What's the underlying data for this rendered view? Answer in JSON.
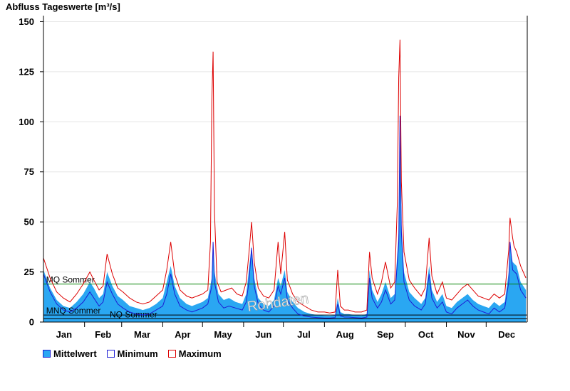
{
  "colors": {
    "mean_fill": "#2aa7f2",
    "minimum": "#1c1cd4",
    "maximum": "#dd0000",
    "mq_line": "#008000",
    "threshold_line": "#000000"
  },
  "chart_data": {
    "type": "area",
    "title": "Abfluss Tageswerte [m³/s]",
    "xlabel": "",
    "ylabel": "",
    "ylim": [
      0,
      153
    ],
    "y_ticks": [
      "0",
      "25",
      "50",
      "75",
      "100",
      "125",
      "150"
    ],
    "x_days": 365,
    "months": [
      "Jan",
      "Feb",
      "Mar",
      "Apr",
      "May",
      "Jun",
      "Jul",
      "Aug",
      "Sep",
      "Oct",
      "Nov",
      "Dec"
    ],
    "grid": true,
    "legend_position": "bottom-left",
    "watermark": "Rohdaten",
    "reference_lines": [
      {
        "label": "MQ Sommer",
        "value": 19
      },
      {
        "label": "MNQ Sommer",
        "value": 3.5
      },
      {
        "label": "NQ Sommer",
        "value": 1.6
      }
    ],
    "series": [
      {
        "name": "Mittelwert",
        "points": [
          [
            0,
            26
          ],
          [
            5,
            17
          ],
          [
            10,
            11
          ],
          [
            15,
            8
          ],
          [
            20,
            7
          ],
          [
            25,
            10
          ],
          [
            30,
            14
          ],
          [
            35,
            20
          ],
          [
            38,
            17
          ],
          [
            42,
            12
          ],
          [
            45,
            14
          ],
          [
            48,
            25
          ],
          [
            52,
            18
          ],
          [
            56,
            13
          ],
          [
            60,
            11
          ],
          [
            65,
            8
          ],
          [
            70,
            7
          ],
          [
            75,
            6
          ],
          [
            80,
            7
          ],
          [
            85,
            9
          ],
          [
            90,
            12
          ],
          [
            93,
            20
          ],
          [
            96,
            28
          ],
          [
            99,
            18
          ],
          [
            103,
            12
          ],
          [
            108,
            9
          ],
          [
            112,
            8
          ],
          [
            116,
            9
          ],
          [
            120,
            10
          ],
          [
            124,
            12
          ],
          [
            127,
            22
          ],
          [
            128,
            39
          ],
          [
            129,
            25
          ],
          [
            132,
            14
          ],
          [
            136,
            11
          ],
          [
            140,
            12
          ],
          [
            145,
            10
          ],
          [
            150,
            9
          ],
          [
            153,
            14
          ],
          [
            155,
            26
          ],
          [
            157,
            38
          ],
          [
            159,
            22
          ],
          [
            162,
            12
          ],
          [
            166,
            9
          ],
          [
            170,
            8
          ],
          [
            174,
            11
          ],
          [
            177,
            22
          ],
          [
            179,
            18
          ],
          [
            182,
            26
          ],
          [
            184,
            15
          ],
          [
            188,
            10
          ],
          [
            192,
            7
          ],
          [
            197,
            5
          ],
          [
            202,
            4
          ],
          [
            207,
            3.5
          ],
          [
            212,
            3.3
          ],
          [
            216,
            3.2
          ],
          [
            220,
            3.4
          ],
          [
            222,
            12
          ],
          [
            224,
            5
          ],
          [
            227,
            4
          ],
          [
            230,
            4
          ],
          [
            235,
            3.5
          ],
          [
            240,
            3.3
          ],
          [
            244,
            4
          ],
          [
            246,
            26
          ],
          [
            248,
            16
          ],
          [
            252,
            10
          ],
          [
            255,
            14
          ],
          [
            258,
            20
          ],
          [
            262,
            12
          ],
          [
            265,
            14
          ],
          [
            268,
            45
          ],
          [
            269,
            95
          ],
          [
            270,
            50
          ],
          [
            272,
            25
          ],
          [
            276,
            15
          ],
          [
            280,
            12
          ],
          [
            285,
            9
          ],
          [
            288,
            12
          ],
          [
            291,
            28
          ],
          [
            293,
            16
          ],
          [
            297,
            10
          ],
          [
            301,
            14
          ],
          [
            304,
            8
          ],
          [
            308,
            7
          ],
          [
            312,
            10
          ],
          [
            316,
            12
          ],
          [
            320,
            14
          ],
          [
            324,
            11
          ],
          [
            328,
            9
          ],
          [
            332,
            8
          ],
          [
            336,
            7
          ],
          [
            340,
            10
          ],
          [
            344,
            8
          ],
          [
            348,
            10
          ],
          [
            351,
            25
          ],
          [
            352,
            38
          ],
          [
            354,
            30
          ],
          [
            357,
            28
          ],
          [
            360,
            20
          ],
          [
            364,
            16
          ]
        ]
      },
      {
        "name": "Minimum",
        "points": [
          [
            0,
            24
          ],
          [
            5,
            15
          ],
          [
            10,
            9
          ],
          [
            15,
            6
          ],
          [
            20,
            5
          ],
          [
            25,
            7
          ],
          [
            30,
            10
          ],
          [
            35,
            15
          ],
          [
            38,
            12
          ],
          [
            42,
            8
          ],
          [
            45,
            10
          ],
          [
            48,
            20
          ],
          [
            52,
            14
          ],
          [
            56,
            9
          ],
          [
            60,
            7
          ],
          [
            65,
            5
          ],
          [
            70,
            4
          ],
          [
            75,
            3.5
          ],
          [
            80,
            4
          ],
          [
            85,
            6
          ],
          [
            90,
            8
          ],
          [
            93,
            14
          ],
          [
            96,
            24
          ],
          [
            99,
            14
          ],
          [
            103,
            8
          ],
          [
            108,
            6
          ],
          [
            112,
            5
          ],
          [
            116,
            6
          ],
          [
            120,
            7
          ],
          [
            124,
            9
          ],
          [
            127,
            18
          ],
          [
            128,
            40
          ],
          [
            129,
            20
          ],
          [
            132,
            10
          ],
          [
            136,
            7
          ],
          [
            140,
            8
          ],
          [
            145,
            7
          ],
          [
            150,
            6
          ],
          [
            153,
            10
          ],
          [
            155,
            20
          ],
          [
            157,
            37
          ],
          [
            159,
            18
          ],
          [
            162,
            9
          ],
          [
            166,
            6
          ],
          [
            170,
            5
          ],
          [
            174,
            8
          ],
          [
            177,
            18
          ],
          [
            179,
            14
          ],
          [
            182,
            22
          ],
          [
            184,
            11
          ],
          [
            188,
            7
          ],
          [
            192,
            4
          ],
          [
            197,
            3
          ],
          [
            202,
            2.5
          ],
          [
            207,
            2.2
          ],
          [
            212,
            2
          ],
          [
            216,
            2
          ],
          [
            220,
            2.2
          ],
          [
            222,
            9
          ],
          [
            224,
            3
          ],
          [
            227,
            2.5
          ],
          [
            230,
            2.5
          ],
          [
            235,
            2.2
          ],
          [
            240,
            2
          ],
          [
            244,
            2.5
          ],
          [
            246,
            22
          ],
          [
            248,
            12
          ],
          [
            252,
            7
          ],
          [
            255,
            10
          ],
          [
            258,
            16
          ],
          [
            262,
            9
          ],
          [
            265,
            11
          ],
          [
            268,
            40
          ],
          [
            269,
            103
          ],
          [
            270,
            45
          ],
          [
            272,
            20
          ],
          [
            276,
            11
          ],
          [
            280,
            8
          ],
          [
            285,
            6
          ],
          [
            288,
            9
          ],
          [
            291,
            24
          ],
          [
            293,
            12
          ],
          [
            297,
            7
          ],
          [
            301,
            10
          ],
          [
            304,
            5
          ],
          [
            308,
            4
          ],
          [
            312,
            7
          ],
          [
            316,
            9
          ],
          [
            320,
            11
          ],
          [
            324,
            8
          ],
          [
            328,
            6
          ],
          [
            332,
            5
          ],
          [
            336,
            4
          ],
          [
            340,
            7
          ],
          [
            344,
            5
          ],
          [
            348,
            7
          ],
          [
            351,
            20
          ],
          [
            352,
            40
          ],
          [
            354,
            26
          ],
          [
            357,
            24
          ],
          [
            360,
            16
          ],
          [
            364,
            12
          ]
        ]
      },
      {
        "name": "Maximum",
        "points": [
          [
            0,
            32
          ],
          [
            5,
            22
          ],
          [
            10,
            15
          ],
          [
            15,
            12
          ],
          [
            20,
            10
          ],
          [
            25,
            14
          ],
          [
            30,
            19
          ],
          [
            35,
            25
          ],
          [
            38,
            21
          ],
          [
            42,
            16
          ],
          [
            45,
            18
          ],
          [
            48,
            34
          ],
          [
            52,
            24
          ],
          [
            56,
            17
          ],
          [
            60,
            15
          ],
          [
            65,
            12
          ],
          [
            70,
            10
          ],
          [
            75,
            9
          ],
          [
            80,
            10
          ],
          [
            85,
            13
          ],
          [
            90,
            16
          ],
          [
            93,
            26
          ],
          [
            96,
            40
          ],
          [
            99,
            24
          ],
          [
            103,
            16
          ],
          [
            108,
            13
          ],
          [
            112,
            12
          ],
          [
            116,
            13
          ],
          [
            120,
            14
          ],
          [
            124,
            16
          ],
          [
            126,
            40
          ],
          [
            127,
            110
          ],
          [
            128,
            135
          ],
          [
            129,
            55
          ],
          [
            131,
            20
          ],
          [
            134,
            15
          ],
          [
            138,
            16
          ],
          [
            142,
            17
          ],
          [
            146,
            14
          ],
          [
            150,
            13
          ],
          [
            153,
            20
          ],
          [
            155,
            34
          ],
          [
            157,
            50
          ],
          [
            159,
            30
          ],
          [
            162,
            17
          ],
          [
            166,
            13
          ],
          [
            170,
            12
          ],
          [
            174,
            16
          ],
          [
            177,
            40
          ],
          [
            179,
            24
          ],
          [
            182,
            45
          ],
          [
            184,
            21
          ],
          [
            188,
            14
          ],
          [
            192,
            10
          ],
          [
            197,
            8
          ],
          [
            202,
            6
          ],
          [
            207,
            5
          ],
          [
            212,
            5
          ],
          [
            216,
            4.5
          ],
          [
            220,
            5
          ],
          [
            222,
            26
          ],
          [
            224,
            8
          ],
          [
            227,
            6
          ],
          [
            230,
            6
          ],
          [
            235,
            5
          ],
          [
            240,
            5
          ],
          [
            244,
            6
          ],
          [
            246,
            35
          ],
          [
            248,
            22
          ],
          [
            252,
            14
          ],
          [
            255,
            20
          ],
          [
            258,
            30
          ],
          [
            262,
            17
          ],
          [
            265,
            20
          ],
          [
            267,
            60
          ],
          [
            268,
            122
          ],
          [
            269,
            141
          ],
          [
            270,
            70
          ],
          [
            272,
            35
          ],
          [
            276,
            21
          ],
          [
            280,
            17
          ],
          [
            285,
            13
          ],
          [
            288,
            17
          ],
          [
            291,
            42
          ],
          [
            293,
            23
          ],
          [
            297,
            14
          ],
          [
            301,
            20
          ],
          [
            304,
            12
          ],
          [
            308,
            11
          ],
          [
            312,
            14
          ],
          [
            316,
            17
          ],
          [
            320,
            19
          ],
          [
            324,
            16
          ],
          [
            328,
            13
          ],
          [
            332,
            12
          ],
          [
            336,
            11
          ],
          [
            340,
            14
          ],
          [
            344,
            12
          ],
          [
            348,
            14
          ],
          [
            351,
            36
          ],
          [
            352,
            52
          ],
          [
            354,
            42
          ],
          [
            355,
            38
          ],
          [
            357,
            35
          ],
          [
            360,
            28
          ],
          [
            364,
            22
          ]
        ]
      }
    ]
  }
}
